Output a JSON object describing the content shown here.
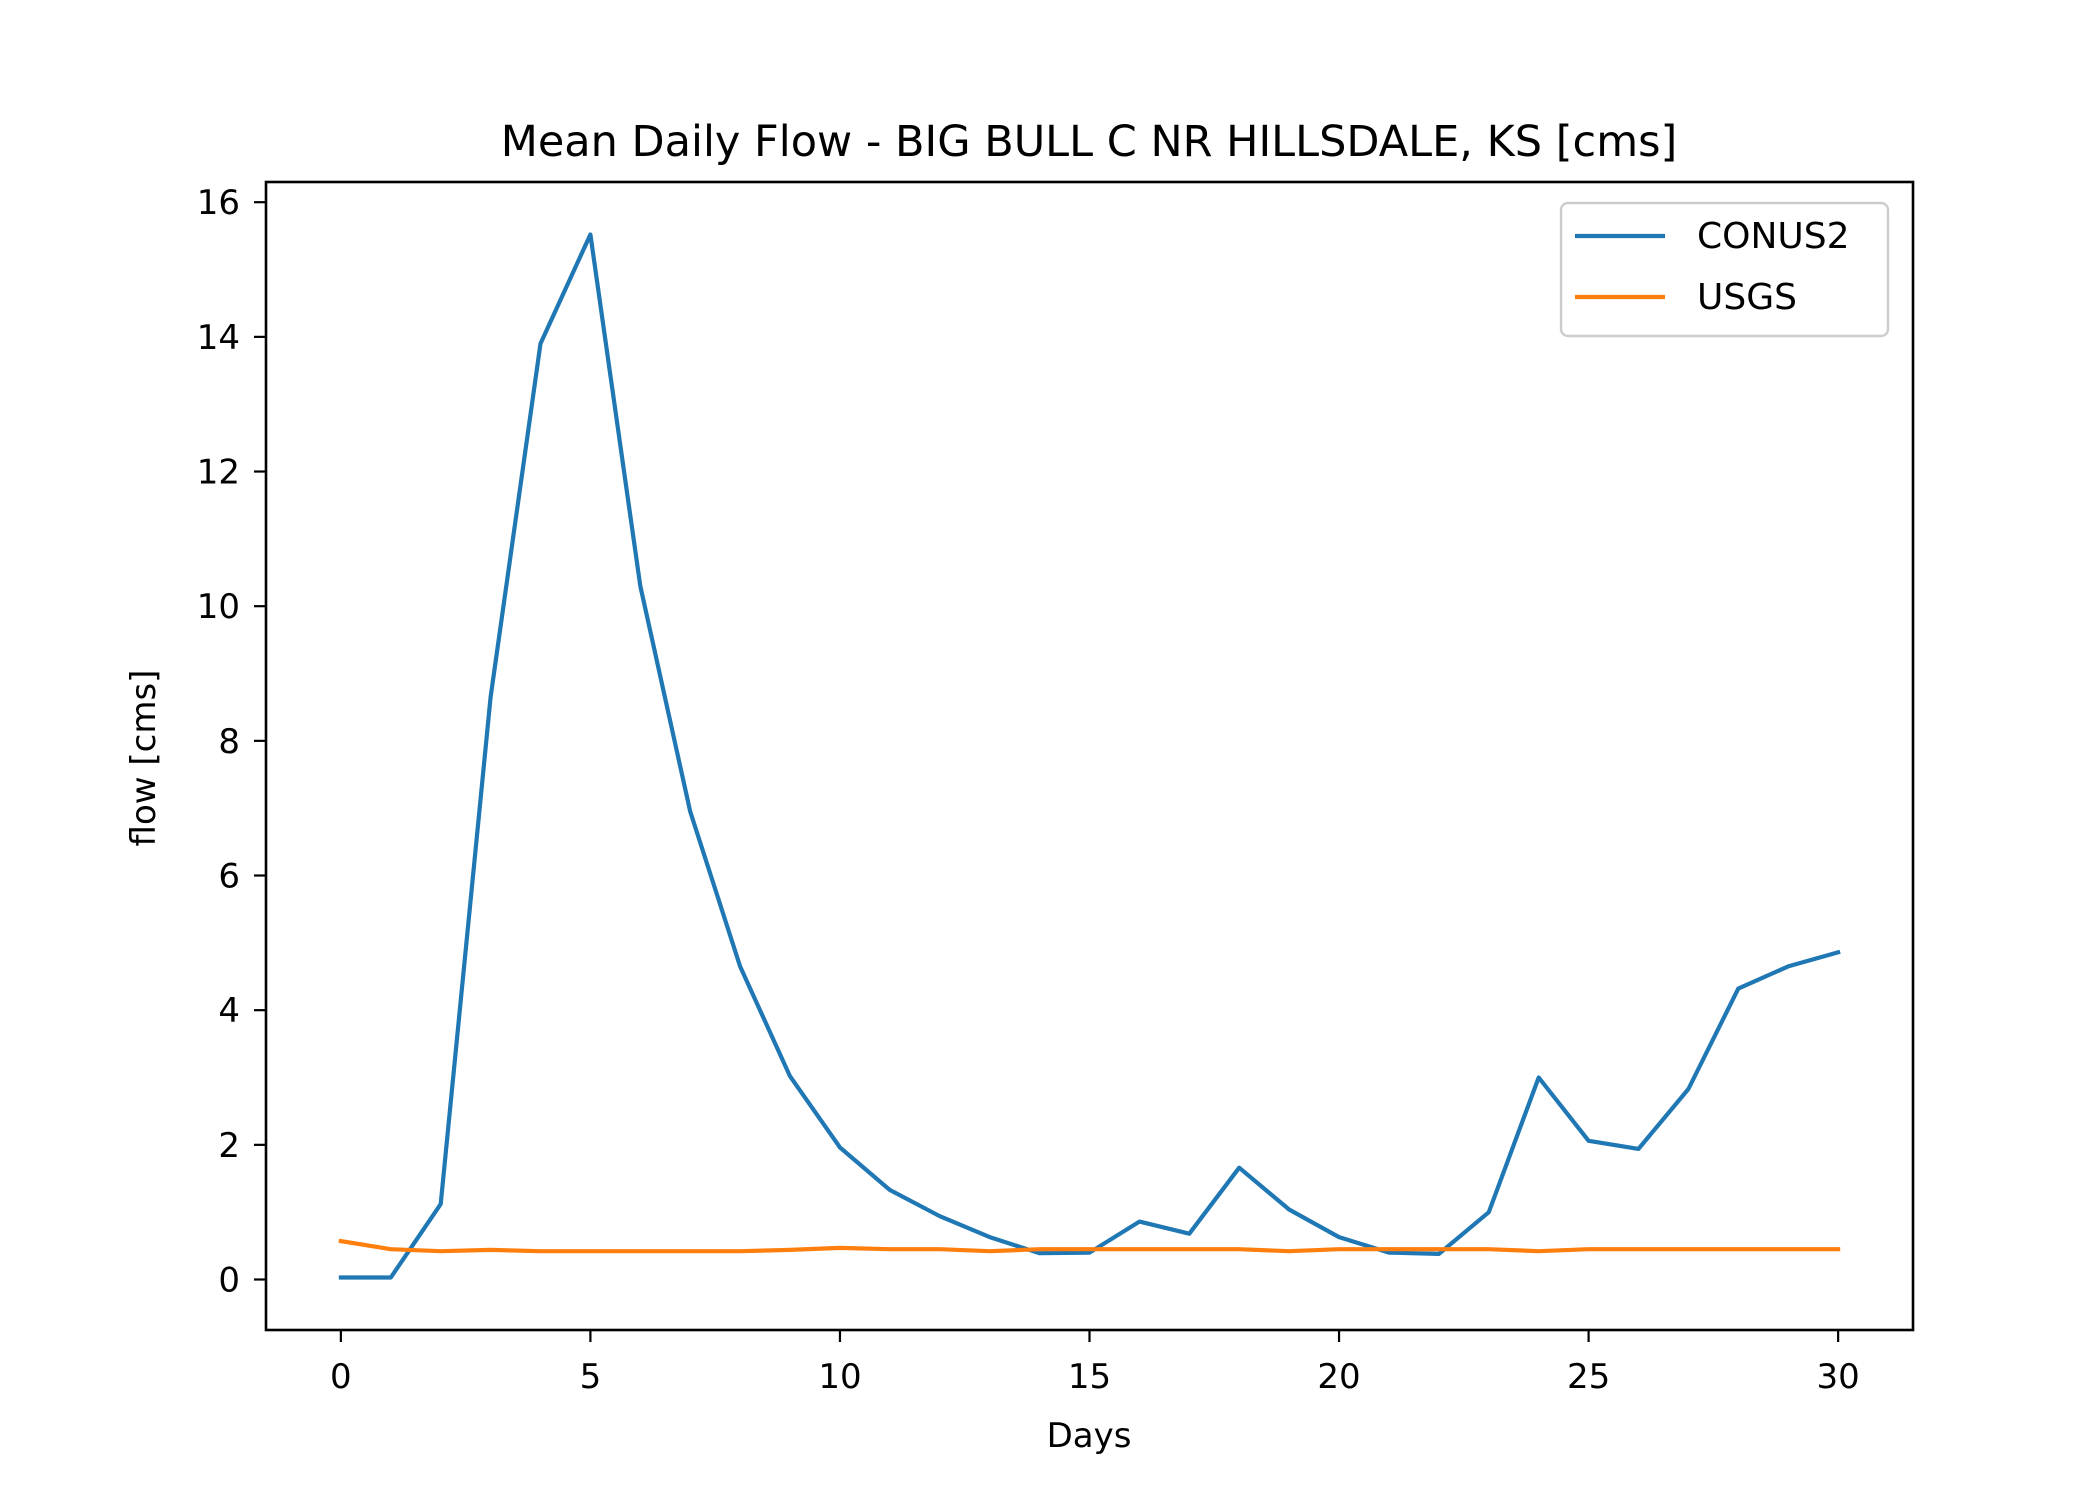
{
  "chart_data": {
    "type": "line",
    "title": "Mean Daily Flow - BIG BULL C NR HILLSDALE, KS [cms]",
    "xlabel": "Days",
    "ylabel": "flow [cms]",
    "xlim": [
      -1.5,
      31.5
    ],
    "ylim": [
      -0.75,
      16.3
    ],
    "xticks": [
      0,
      5,
      10,
      15,
      20,
      25,
      30
    ],
    "yticks": [
      0,
      2,
      4,
      6,
      8,
      10,
      12,
      14,
      16
    ],
    "grid": false,
    "legend_position": "top-right",
    "x": [
      0,
      1,
      2,
      3,
      4,
      5,
      6,
      7,
      8,
      9,
      10,
      11,
      12,
      13,
      14,
      15,
      16,
      17,
      18,
      19,
      20,
      21,
      22,
      23,
      24,
      25,
      26,
      27,
      28,
      29,
      30
    ],
    "series": [
      {
        "name": "CONUS2",
        "color": "#1f77b4",
        "values": [
          0.03,
          0.03,
          1.12,
          8.65,
          13.9,
          15.52,
          10.3,
          6.95,
          4.65,
          3.02,
          1.96,
          1.33,
          0.94,
          0.63,
          0.39,
          0.4,
          0.86,
          0.68,
          1.66,
          1.04,
          0.63,
          0.4,
          0.38,
          1.0,
          3.0,
          2.06,
          1.94,
          2.83,
          4.32,
          4.65,
          4.86
        ]
      },
      {
        "name": "USGS",
        "color": "#ff7f0e",
        "values": [
          0.57,
          0.45,
          0.42,
          0.44,
          0.42,
          0.42,
          0.42,
          0.42,
          0.42,
          0.44,
          0.47,
          0.45,
          0.45,
          0.42,
          0.45,
          0.45,
          0.45,
          0.45,
          0.45,
          0.42,
          0.45,
          0.45,
          0.45,
          0.45,
          0.42,
          0.45,
          0.45,
          0.45,
          0.45,
          0.45,
          0.45
        ]
      }
    ]
  }
}
